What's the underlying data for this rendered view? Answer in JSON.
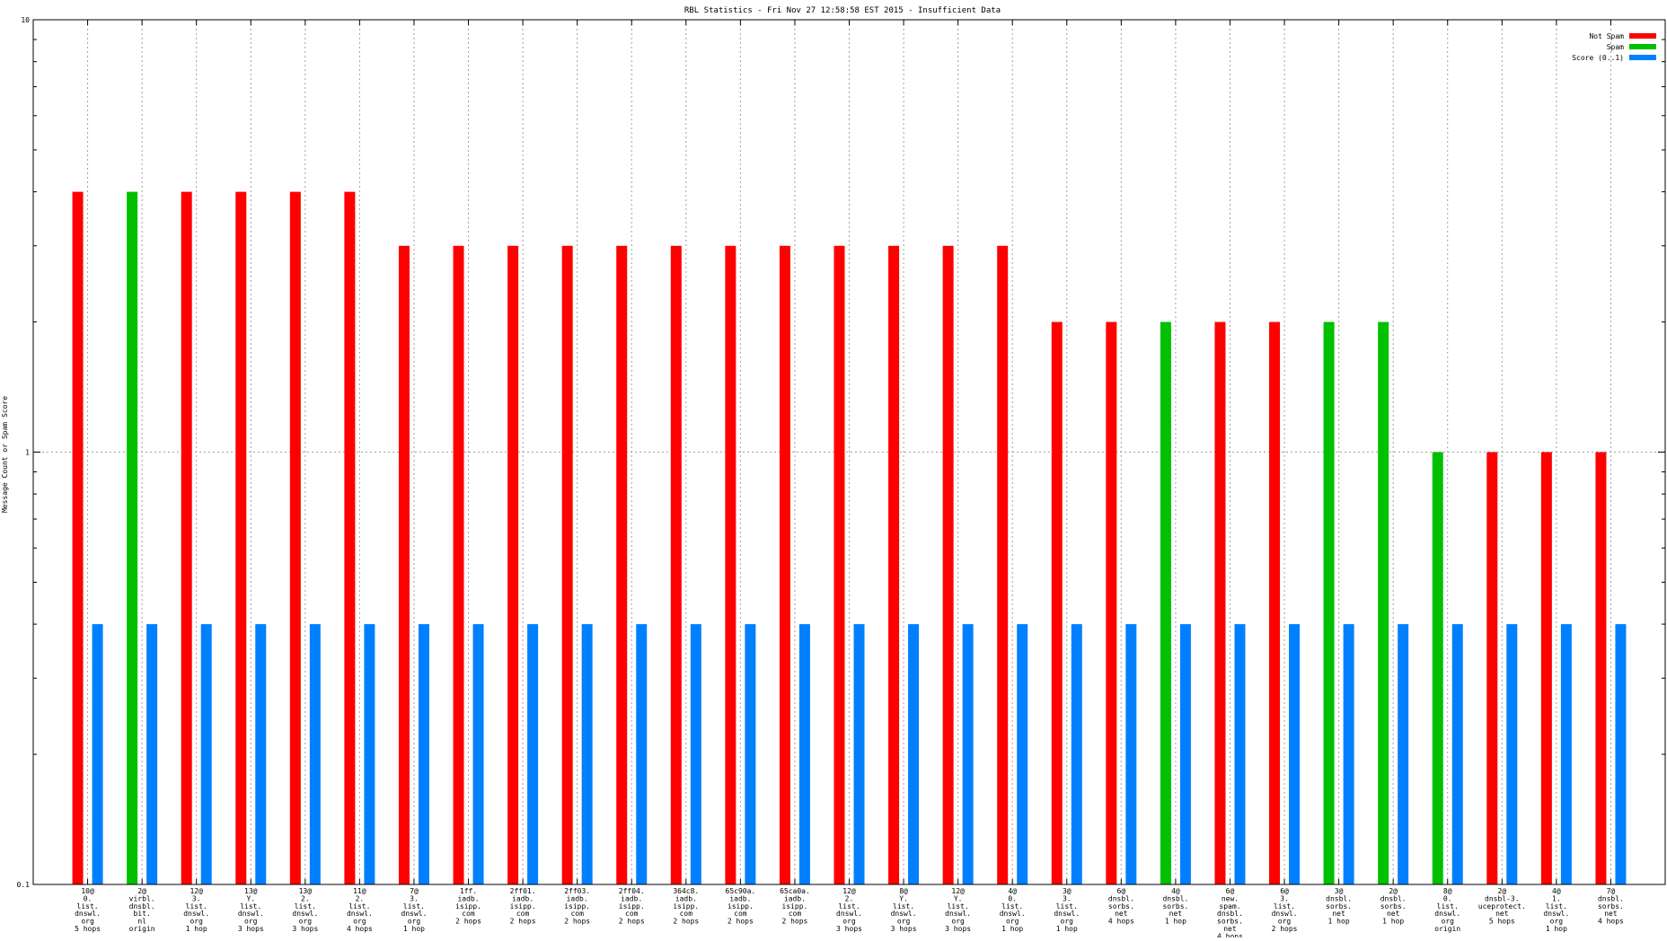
{
  "chart_data": {
    "type": "bar",
    "title": "RBL Statistics - Fri Nov 27 12:58:58 EST 2015 - Insufficient Data",
    "ylabel": "Message Count or Spam Score",
    "xlabel": "",
    "yscale": "log",
    "ylim": [
      0.1,
      10
    ],
    "yticks": [
      {
        "value": 0.1,
        "label": "0.1"
      },
      {
        "value": 1,
        "label": "1"
      },
      {
        "value": 10,
        "label": "10"
      }
    ],
    "grid": true,
    "legend_position": "top-right",
    "categories": [
      [
        "10@",
        "0.",
        "list.",
        "dnswl.",
        "org",
        "5 hops"
      ],
      [
        "2@",
        "virbl.",
        "dnsbl.",
        "bit.",
        "nl",
        "origin"
      ],
      [
        "12@",
        "3.",
        "list.",
        "dnswl.",
        "org",
        "1 hop"
      ],
      [
        "13@",
        "Y.",
        "list.",
        "dnswl.",
        "org",
        "3 hops"
      ],
      [
        "13@",
        "2.",
        "list.",
        "dnswl.",
        "org",
        "3 hops"
      ],
      [
        "11@",
        "2.",
        "list.",
        "dnswl.",
        "org",
        "4 hops"
      ],
      [
        "7@",
        "3.",
        "list.",
        "dnswl.",
        "org",
        "1 hop"
      ],
      [
        "1ff.",
        "iadb.",
        "isipp.",
        "com",
        "2 hops"
      ],
      [
        "2ff01.",
        "iadb.",
        "isipp.",
        "com",
        "2 hops"
      ],
      [
        "2ff03.",
        "iadb.",
        "isipp.",
        "com",
        "2 hops"
      ],
      [
        "2ff04.",
        "iadb.",
        "isipp.",
        "com",
        "2 hops"
      ],
      [
        "364c8.",
        "iadb.",
        "isipp.",
        "com",
        "2 hops"
      ],
      [
        "65c90a.",
        "iadb.",
        "isipp.",
        "com",
        "2 hops"
      ],
      [
        "65ca0a.",
        "iadb.",
        "isipp.",
        "com",
        "2 hops"
      ],
      [
        "12@",
        "2.",
        "list.",
        "dnswl.",
        "org",
        "3 hops"
      ],
      [
        "8@",
        "Y.",
        "list.",
        "dnswl.",
        "org",
        "3 hops"
      ],
      [
        "12@",
        "Y.",
        "list.",
        "dnswl.",
        "org",
        "3 hops"
      ],
      [
        "4@",
        "0.",
        "list.",
        "dnswl.",
        "org",
        "1 hop"
      ],
      [
        "3@",
        "3.",
        "list.",
        "dnswl.",
        "org",
        "1 hop"
      ],
      [
        "6@",
        "dnsbl.",
        "sorbs.",
        "net",
        "4 hops"
      ],
      [
        "4@",
        "dnsbl.",
        "sorbs.",
        "net",
        "1 hop"
      ],
      [
        "6@",
        "new.",
        "spam.",
        "dnsbl.",
        "sorbs.",
        "net",
        "4 hops"
      ],
      [
        "6@",
        "3.",
        "list.",
        "dnswl.",
        "org",
        "2 hops"
      ],
      [
        "3@",
        "dnsbl.",
        "sorbs.",
        "net",
        "1 hop"
      ],
      [
        "2@",
        "dnsbl.",
        "sorbs.",
        "net",
        "1 hop"
      ],
      [
        "8@",
        "0.",
        "list.",
        "dnswl.",
        "org",
        "origin"
      ],
      [
        "2@",
        "dnsbl-3.",
        "uceprotect.",
        "net",
        "5 hops"
      ],
      [
        "4@",
        "1.",
        "list.",
        "dnswl.",
        "org",
        "1 hop"
      ],
      [
        "7@",
        "dnsbl.",
        "sorbs.",
        "net",
        "4 hops"
      ]
    ],
    "series": [
      {
        "name": "Not Spam",
        "color": "#ff0000",
        "values": [
          4,
          null,
          4,
          4,
          4,
          4,
          3,
          3,
          3,
          3,
          3,
          3,
          3,
          3,
          3,
          3,
          3,
          3,
          2,
          2,
          null,
          2,
          2,
          null,
          null,
          null,
          1,
          1,
          1
        ]
      },
      {
        "name": "Spam",
        "color": "#00c000",
        "values": [
          null,
          4,
          null,
          null,
          null,
          null,
          null,
          null,
          null,
          null,
          null,
          null,
          null,
          null,
          null,
          null,
          null,
          null,
          null,
          null,
          2,
          null,
          null,
          2,
          2,
          1,
          null,
          null,
          null
        ]
      },
      {
        "name": "Score (0..1)",
        "color": "#0080ff",
        "values": [
          0.4,
          0.4,
          0.4,
          0.4,
          0.4,
          0.4,
          0.4,
          0.4,
          0.4,
          0.4,
          0.4,
          0.4,
          0.4,
          0.4,
          0.4,
          0.4,
          0.4,
          0.4,
          0.4,
          0.4,
          0.4,
          0.4,
          0.4,
          0.4,
          0.4,
          0.4,
          0.4,
          0.4,
          0.4
        ]
      }
    ]
  }
}
